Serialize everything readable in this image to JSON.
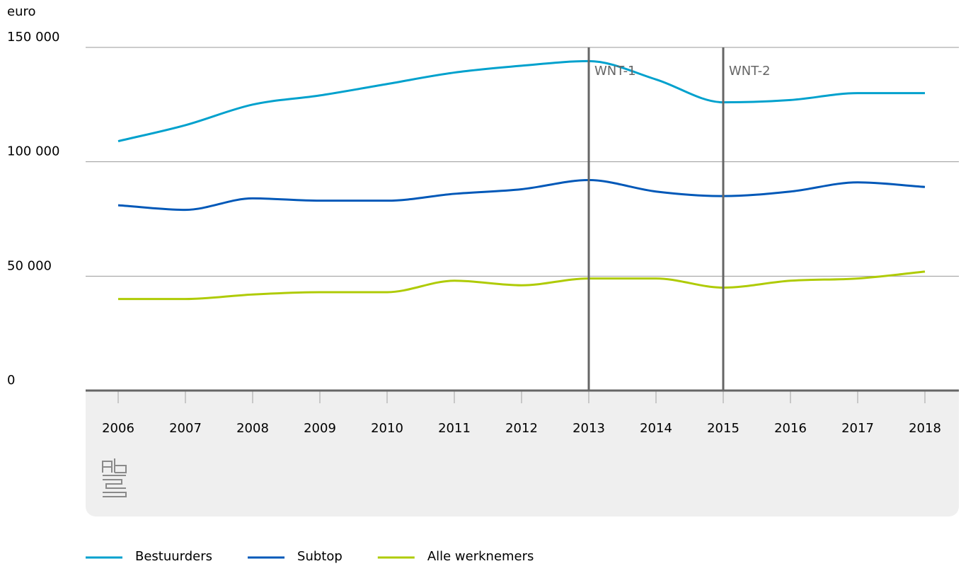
{
  "chart_data": {
    "type": "line",
    "y_label": "euro",
    "categories": [
      "2006",
      "2007",
      "2008",
      "2009",
      "2010",
      "2011",
      "2012",
      "2013",
      "2014",
      "2015",
      "2016",
      "2017",
      "2018"
    ],
    "series": [
      {
        "name": "Bestuurders",
        "color": "#00a1cd",
        "values": [
          109000,
          116000,
          125000,
          129000,
          134000,
          139000,
          142000,
          144000,
          136000,
          126000,
          127000,
          130000,
          130000
        ]
      },
      {
        "name": "Subtop",
        "color": "#0058b8",
        "values": [
          81000,
          79000,
          84000,
          83000,
          83000,
          86000,
          88000,
          92000,
          87000,
          85000,
          87000,
          91000,
          89000
        ]
      },
      {
        "name": "Alle werknemers",
        "color": "#afcb05",
        "values": [
          40000,
          40000,
          42000,
          43000,
          43000,
          48000,
          46000,
          49000,
          49000,
          45000,
          48000,
          49000,
          52000
        ]
      }
    ],
    "ylim": [
      0,
      150000
    ],
    "yticks": [
      0,
      {
        "value": 50000,
        "label": "50 000"
      },
      {
        "value": 100000,
        "label": "100 000"
      },
      {
        "value": 150000,
        "label": "150 000"
      }
    ],
    "grid": true,
    "annotations": [
      {
        "category": "2013",
        "label": "WNT-1"
      },
      {
        "category": "2015",
        "label": "WNT-2"
      }
    ],
    "legend": "bottom-left"
  }
}
